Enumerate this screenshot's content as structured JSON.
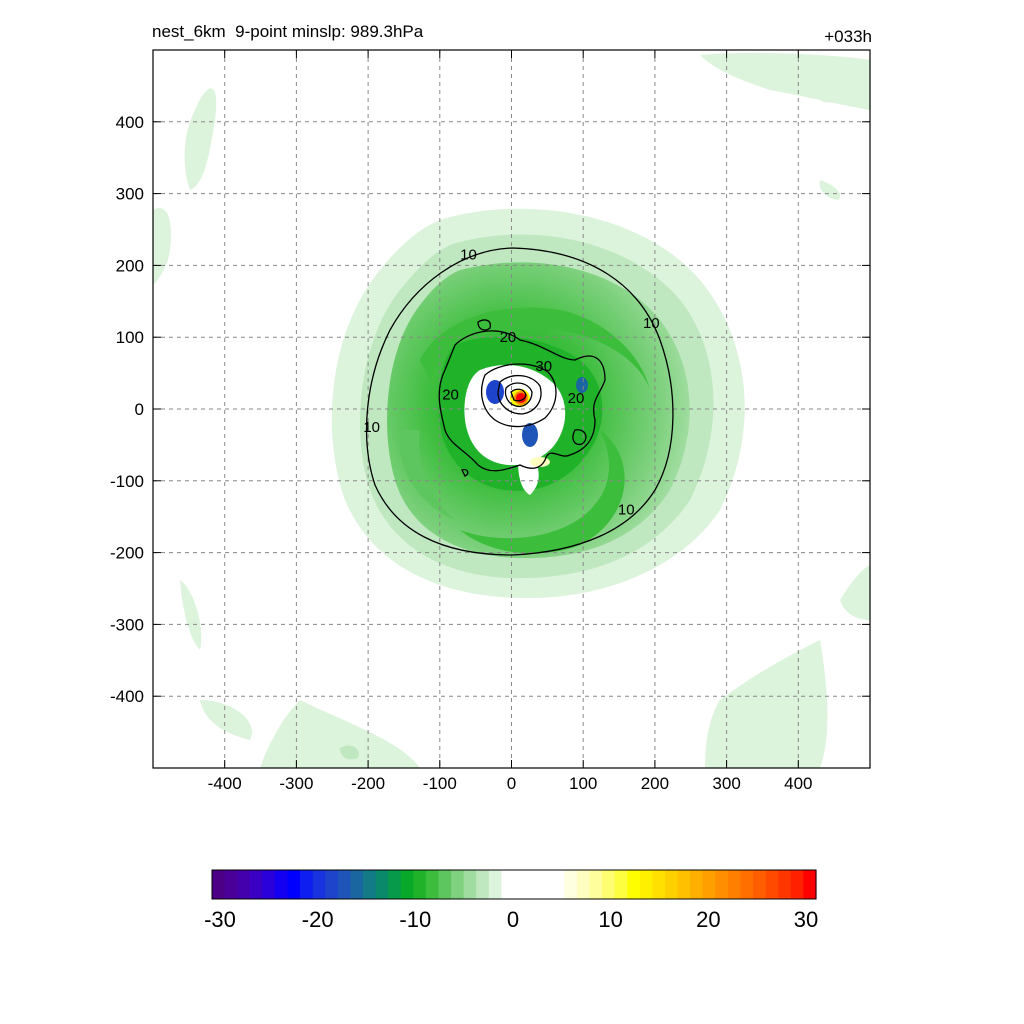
{
  "title_left": "nest_6km  9-point minslp: 989.3hPa",
  "title_right": "+033h",
  "chart_data": {
    "type": "contour",
    "xlim": [
      -500,
      500
    ],
    "ylim": [
      -500,
      500
    ],
    "x_ticks": [
      -400,
      -300,
      -200,
      -100,
      0,
      100,
      200,
      300,
      400
    ],
    "y_ticks": [
      -400,
      -300,
      -200,
      -100,
      0,
      100,
      200,
      300,
      400
    ],
    "grid": true,
    "contour_labels": [
      {
        "text": "10",
        "x": -60,
        "y": 215
      },
      {
        "text": "10",
        "x": 195,
        "y": 120
      },
      {
        "text": "10",
        "x": -195,
        "y": -25
      },
      {
        "text": "10",
        "x": 160,
        "y": -140
      },
      {
        "text": "20",
        "x": -5,
        "y": 100
      },
      {
        "text": "30",
        "x": 45,
        "y": 60
      },
      {
        "text": "20",
        "x": -85,
        "y": 20
      },
      {
        "text": "20",
        "x": 90,
        "y": 15
      }
    ],
    "colorbar": {
      "min": -30,
      "max": 30,
      "tick_labels": [
        "-30",
        "-20",
        "-10",
        "0",
        "10",
        "20",
        "30"
      ],
      "colors": [
        "#4c0085",
        "#4a0098",
        "#4500ad",
        "#3a00c4",
        "#2a00db",
        "#1400f0",
        "#0000ff",
        "#0f1ef0",
        "#1a33e0",
        "#1f44cc",
        "#1f55b8",
        "#1a66a0",
        "#137a87",
        "#0a8a6a",
        "#069a4a",
        "#08a82a",
        "#20b32a",
        "#3cbd3c",
        "#5ec65e",
        "#7fd17f",
        "#a0dca0",
        "#c0e8c0",
        "#dcf3dc",
        "#ffffff",
        "#ffffff",
        "#ffffff",
        "#ffffff",
        "#ffffff",
        "#fefee0",
        "#fefec0",
        "#fefe9c",
        "#fefe70",
        "#fefe40",
        "#fefe00",
        "#fff000",
        "#ffe000",
        "#ffd000",
        "#ffc000",
        "#ffaf00",
        "#ff9f00",
        "#ff8f00",
        "#ff7f00",
        "#ff6f00",
        "#ff5e00",
        "#ff4a00",
        "#ff3600",
        "#ff2000",
        "#ff0000"
      ]
    }
  }
}
